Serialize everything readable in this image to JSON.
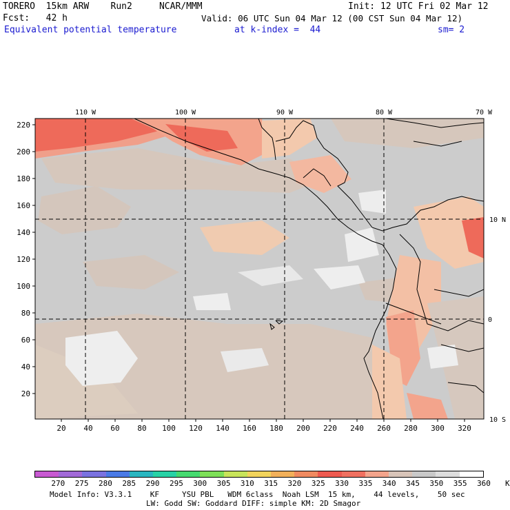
{
  "header": {
    "line1_left": "TORERO  15km ARW    Run2     NCAR/MMM",
    "line1_right": "Init: 12 UTC Fri 02 Mar 12",
    "line2_left": "Fcst:   42 h",
    "line2_right": "Valid: 06 UTC Sun 04 Mar 12 (00 CST Sun 04 Mar 12)",
    "line3_field": "Equivalent potential temperature",
    "line3_level": "at k-index =  44",
    "line3_sm": "sm= 2"
  },
  "map": {
    "top_lon_labels": [
      "110 W",
      "100 W",
      "90 W",
      "80 W",
      "70 W"
    ],
    "right_lat_labels": [
      "10 N",
      "0",
      "10 S"
    ],
    "y_ticks": [
      "220",
      "200",
      "180",
      "160",
      "140",
      "120",
      "100",
      "80",
      "60",
      "40",
      "20"
    ],
    "x_ticks": [
      "20",
      "40",
      "60",
      "80",
      "100",
      "120",
      "140",
      "160",
      "180",
      "200",
      "220",
      "240",
      "260",
      "280",
      "300",
      "320"
    ],
    "colors": {
      "background_gray": "#cccccc",
      "tan": "#d7c8bd",
      "peach": "#f3c9ad",
      "salmon": "#f2a48c",
      "red": "#ee6a5a",
      "white_patch": "#eeeeee"
    }
  },
  "colorbar": {
    "labels": [
      "270",
      "275",
      "280",
      "285",
      "290",
      "295",
      "300",
      "305",
      "310",
      "315",
      "320",
      "325",
      "330",
      "335",
      "340",
      "345",
      "350",
      "355",
      "360",
      "K"
    ],
    "colors": [
      "#c85ad2",
      "#a26ad8",
      "#7a72e0",
      "#4a7ae6",
      "#2ab6c0",
      "#28d2a6",
      "#46da70",
      "#7ee058",
      "#c8e45a",
      "#f2d45c",
      "#f2b05a",
      "#f08a60",
      "#ee5a50",
      "#f07060",
      "#f3a48c",
      "#d8c4b8",
      "#c9c9c9",
      "#dddddd",
      "#ffffff"
    ]
  },
  "footer": {
    "line1": "Model Info: V3.3.1    KF     YSU PBL   WDM 6class  Noah LSM  15 km,    44 levels,    50 sec",
    "line2": "LW: Godd SW: Goddard DIFF: simple KM: 2D Smagor"
  }
}
